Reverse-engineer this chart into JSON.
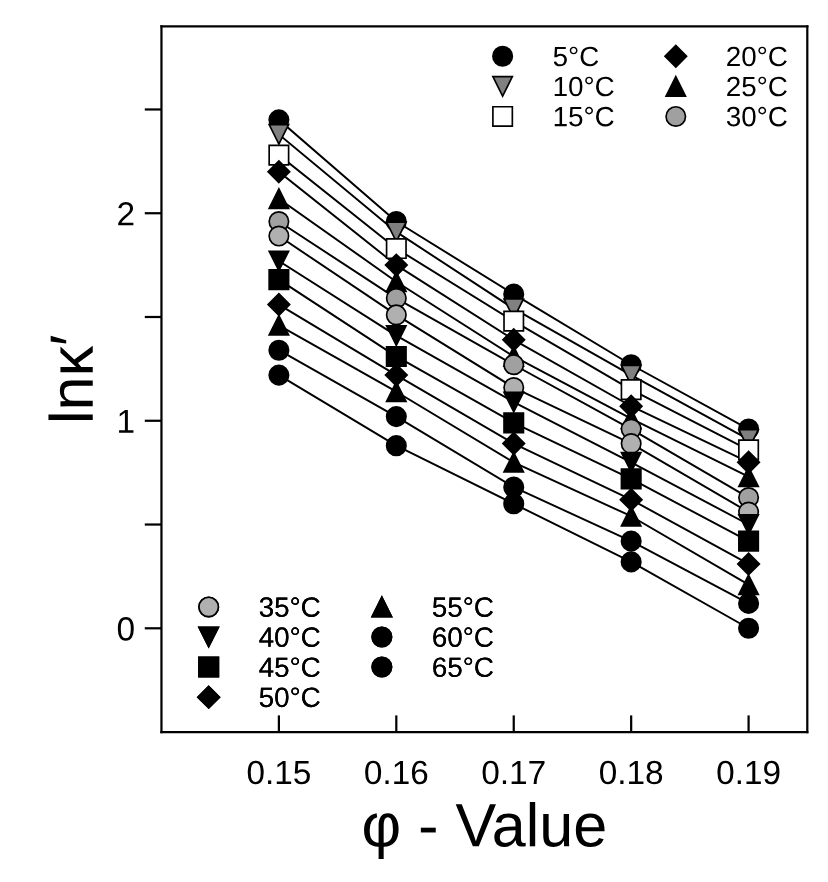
{
  "chart_data": {
    "type": "line",
    "xlabel": "φ - Value",
    "ylabel": "lnκ′",
    "x": [
      0.15,
      0.16,
      0.17,
      0.18,
      0.19
    ],
    "xlim": [
      0.14,
      0.195
    ],
    "ylim": [
      -0.5,
      2.9
    ],
    "xticks": [
      0.15,
      0.16,
      0.17,
      0.18,
      0.19
    ],
    "yticks": [
      {
        "value": 0,
        "label": "0"
      },
      {
        "value": 0.5,
        "label": null
      },
      {
        "value": 1,
        "label": "1"
      },
      {
        "value": 1.5,
        "label": null
      },
      {
        "value": 2,
        "label": "2"
      },
      {
        "value": 2.5,
        "label": null
      }
    ],
    "grid": false,
    "legend": [
      "top right",
      "bottom left"
    ],
    "line_style": "solid",
    "series": [
      {
        "name": "5°C",
        "marker": "circle",
        "color": "#000000",
        "values": [
          2.45,
          1.96,
          1.61,
          1.27,
          0.96
        ]
      },
      {
        "name": "10°C",
        "marker": "triangle_down",
        "color": "#808080",
        "values": [
          2.38,
          1.91,
          1.54,
          1.22,
          0.91
        ]
      },
      {
        "name": "15°C",
        "marker": "square",
        "color": "#ffffff",
        "values": [
          2.28,
          1.83,
          1.48,
          1.15,
          0.86
        ]
      },
      {
        "name": "20°C",
        "marker": "diamond",
        "color": "#000000",
        "values": [
          2.2,
          1.75,
          1.39,
          1.07,
          0.8
        ]
      },
      {
        "name": "25°C",
        "marker": "triangle",
        "color": "#000000",
        "values": [
          2.07,
          1.67,
          1.31,
          1.01,
          0.73
        ]
      },
      {
        "name": "30°C",
        "marker": "circle",
        "color": "#a0a0a0",
        "values": [
          1.96,
          1.59,
          1.27,
          0.96,
          0.63
        ]
      },
      {
        "name": "35°C",
        "marker": "circle",
        "color": "#b0b0b0",
        "values": [
          1.89,
          1.51,
          1.16,
          0.89,
          0.56
        ]
      },
      {
        "name": "40°C",
        "marker": "triangle_down",
        "color": "#000000",
        "values": [
          1.77,
          1.41,
          1.09,
          0.8,
          0.5
        ]
      },
      {
        "name": "45°C",
        "marker": "square",
        "color": "#000000",
        "values": [
          1.68,
          1.31,
          0.99,
          0.72,
          0.42
        ]
      },
      {
        "name": "50°C",
        "marker": "diamond",
        "color": "#000000",
        "values": [
          1.56,
          1.22,
          0.89,
          0.62,
          0.31
        ]
      },
      {
        "name": "55°C",
        "marker": "triangle",
        "color": "#000000",
        "values": [
          1.46,
          1.14,
          0.8,
          0.54,
          0.21
        ]
      },
      {
        "name": "60°C",
        "marker": "circle",
        "color": "#000000",
        "values": [
          1.34,
          1.02,
          0.68,
          0.42,
          0.12
        ]
      },
      {
        "name": "65°C",
        "marker": "circle",
        "color": "#000000",
        "values": [
          1.22,
          0.88,
          0.6,
          0.32,
          0.0
        ]
      }
    ]
  }
}
